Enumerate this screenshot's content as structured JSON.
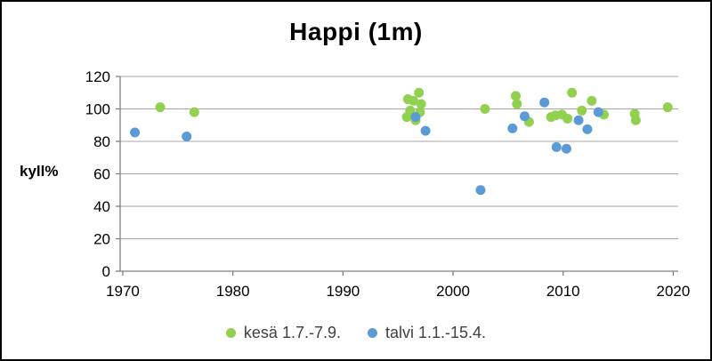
{
  "chart_data": {
    "type": "scatter",
    "title": "Happi (1m)",
    "xlabel": "",
    "ylabel": "kyll%",
    "xlim": [
      1969.76,
      2020.45
    ],
    "ylim": [
      0,
      120
    ],
    "x_ticks": [
      1970,
      1980,
      1990,
      2000,
      2010,
      2020
    ],
    "y_ticks": [
      0,
      20,
      40,
      60,
      80,
      100,
      120
    ],
    "grid": "horizontal",
    "legend_position": "bottom",
    "colors": {
      "gridline": "#a6a6a6",
      "axis": "#7f7f7f",
      "tick_label": "#000000"
    },
    "series": [
      {
        "name": "kesä 1.7.-7.9.",
        "color": "#92d050",
        "points": [
          [
            1973.4,
            101
          ],
          [
            1976.5,
            98
          ],
          [
            1995.8,
            95
          ],
          [
            1995.9,
            106
          ],
          [
            1996.1,
            99
          ],
          [
            1996.4,
            105
          ],
          [
            1996.6,
            93
          ],
          [
            1996.9,
            110
          ],
          [
            1997.0,
            98
          ],
          [
            1997.1,
            103
          ],
          [
            2002.9,
            100
          ],
          [
            2005.7,
            108
          ],
          [
            2005.8,
            103
          ],
          [
            2006.9,
            92
          ],
          [
            2008.9,
            95
          ],
          [
            2009.3,
            96
          ],
          [
            2009.9,
            96.5
          ],
          [
            2010.4,
            94
          ],
          [
            2010.8,
            110
          ],
          [
            2011.7,
            99
          ],
          [
            2012.6,
            105
          ],
          [
            2013.7,
            96.5
          ],
          [
            2016.5,
            97
          ],
          [
            2016.6,
            93
          ],
          [
            2019.5,
            101
          ]
        ]
      },
      {
        "name": "talvi 1.1.-15.4.",
        "color": "#5b9bd5",
        "points": [
          [
            1971.1,
            85.5
          ],
          [
            1975.8,
            83
          ],
          [
            1996.6,
            95
          ],
          [
            1997.5,
            86.5
          ],
          [
            2002.5,
            50
          ],
          [
            2005.4,
            88
          ],
          [
            2006.5,
            95.5
          ],
          [
            2008.3,
            104
          ],
          [
            2009.4,
            76.5
          ],
          [
            2010.3,
            75.5
          ],
          [
            2011.4,
            93
          ],
          [
            2012.2,
            87.5
          ],
          [
            2013.2,
            98
          ]
        ]
      }
    ]
  }
}
